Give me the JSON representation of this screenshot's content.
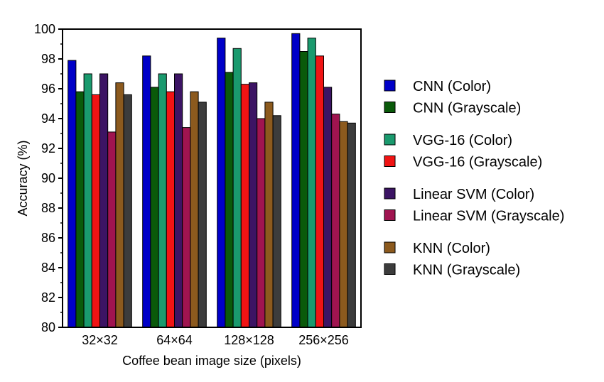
{
  "chart_data": {
    "type": "bar",
    "title": "",
    "xlabel": "Coffee bean image size (pixels)",
    "ylabel": "Accuracy (%)",
    "ylim": [
      80,
      100
    ],
    "yticks": [
      80,
      82,
      84,
      86,
      88,
      90,
      92,
      94,
      96,
      98,
      100
    ],
    "categories": [
      "32×32",
      "64×64",
      "128×128",
      "256×256"
    ],
    "grid": false,
    "legend_position": "right",
    "series": [
      {
        "name": "CNN (Color)",
        "color": "#0000c8",
        "values": [
          97.9,
          98.2,
          99.4,
          99.7
        ]
      },
      {
        "name": "CNN (Grayscale)",
        "color": "#0a5a0a",
        "values": [
          95.8,
          96.1,
          97.1,
          98.5
        ]
      },
      {
        "name": "VGG-16 (Color)",
        "color": "#1a9a6e",
        "values": [
          97.0,
          97.0,
          98.7,
          99.4
        ]
      },
      {
        "name": "VGG-16 (Grayscale)",
        "color": "#f01414",
        "values": [
          95.6,
          95.8,
          96.3,
          98.2
        ]
      },
      {
        "name": "Linear SVM (Color)",
        "color": "#3c1464",
        "values": [
          97.0,
          97.0,
          96.4,
          96.1
        ]
      },
      {
        "name": "Linear SVM (Grayscale)",
        "color": "#a01450",
        "values": [
          93.1,
          93.4,
          94.0,
          94.3
        ]
      },
      {
        "name": "KNN (Color)",
        "color": "#8c5a1e",
        "values": [
          96.4,
          95.8,
          95.1,
          93.8
        ]
      },
      {
        "name": "KNN (Grayscale)",
        "color": "#3c3c3c",
        "values": [
          95.6,
          95.1,
          94.2,
          93.7
        ]
      }
    ]
  }
}
